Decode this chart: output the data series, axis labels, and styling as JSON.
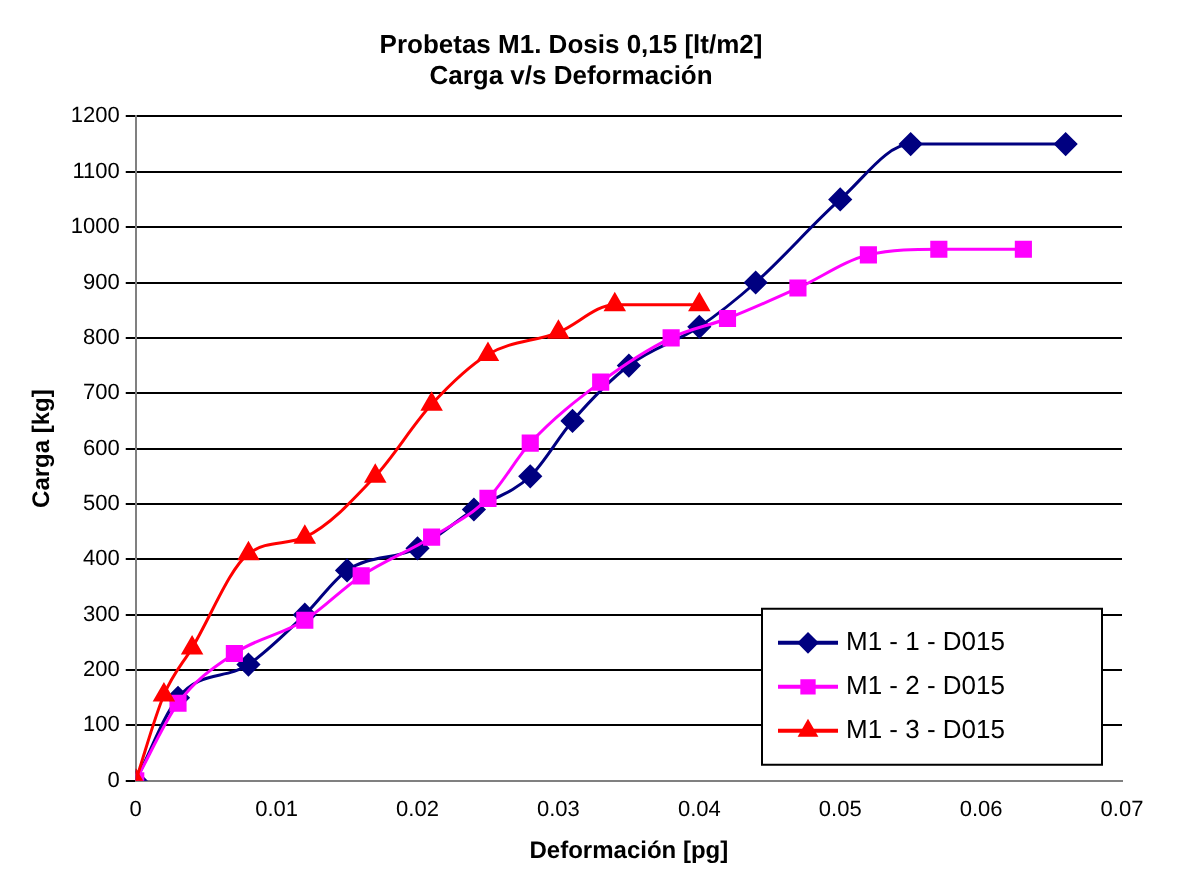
{
  "chart_data": {
    "type": "line",
    "title": "Probetas M1. Dosis 0,15 [lt/m2]",
    "subtitle": "Carga v/s Deformación",
    "xlabel": "Deformación [pg]",
    "ylabel": "Carga [kg]",
    "series": [
      {
        "name": "M1 - 1 - D015",
        "color": "#000080",
        "marker": "diamond",
        "x": [
          0,
          0.003,
          0.008,
          0.012,
          0.015,
          0.02,
          0.024,
          0.028,
          0.031,
          0.035,
          0.04,
          0.044,
          0.05,
          0.055,
          0.066
        ],
        "values": [
          0,
          150,
          210,
          300,
          380,
          420,
          490,
          550,
          650,
          750,
          820,
          900,
          1050,
          1150,
          1150
        ]
      },
      {
        "name": "M1 - 2 - D015",
        "color": "#ff00ff",
        "marker": "square",
        "x": [
          0,
          0.003,
          0.007,
          0.012,
          0.016,
          0.021,
          0.025,
          0.028,
          0.033,
          0.038,
          0.042,
          0.047,
          0.052,
          0.057,
          0.063
        ],
        "values": [
          0,
          140,
          230,
          290,
          370,
          440,
          510,
          610,
          720,
          800,
          835,
          890,
          950,
          960,
          960
        ]
      },
      {
        "name": "M1 - 3 - D015",
        "color": "#ff0000",
        "marker": "triangle",
        "x": [
          0,
          0.002,
          0.004,
          0.008,
          0.012,
          0.017,
          0.021,
          0.025,
          0.03,
          0.034,
          0.04
        ],
        "values": [
          0,
          155,
          240,
          410,
          440,
          550,
          680,
          770,
          810,
          860,
          860
        ]
      }
    ],
    "xlim": [
      0,
      0.07
    ],
    "xticks": [
      0,
      0.01,
      0.02,
      0.03,
      0.04,
      0.05,
      0.06,
      0.07
    ],
    "ylim": [
      0,
      1200
    ],
    "yticks": [
      0,
      100,
      200,
      300,
      400,
      500,
      600,
      700,
      800,
      900,
      1000,
      1100,
      1200
    ],
    "grid": "y",
    "legend": "bottom right"
  }
}
